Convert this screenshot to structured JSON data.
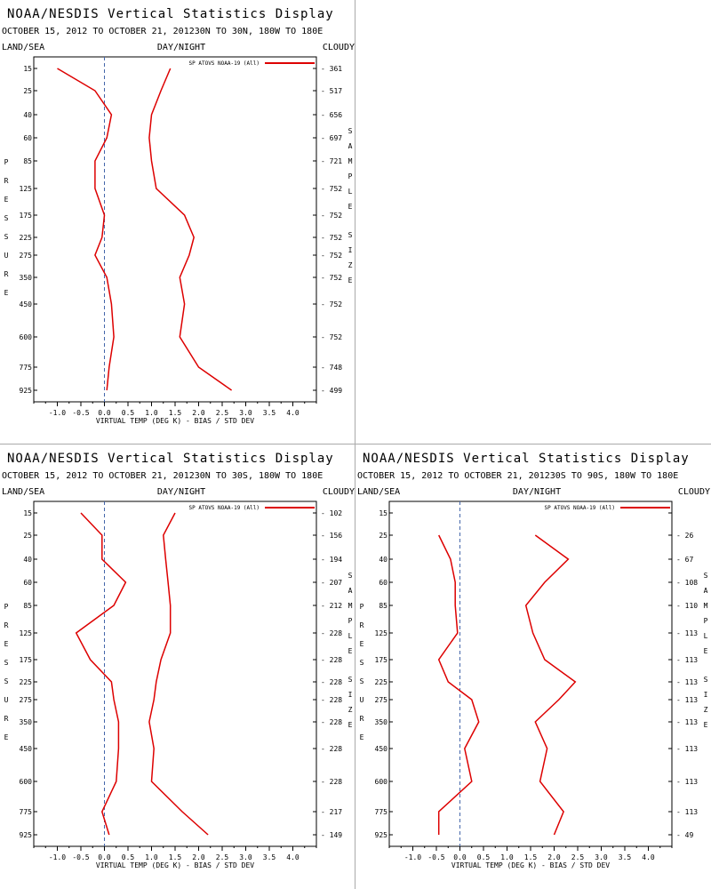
{
  "chart_data": [
    {
      "type": "line",
      "title": "NOAA/NESDIS Vertical Statistics Display",
      "subtitle": "OCTOBER 15, 2012 TO OCTOBER 21, 201230N TO 30N, 180W TO 180E",
      "land_label": "LAND/SEA",
      "daynight_label": "DAY/NIGHT",
      "cloud_label": "CLOUDY",
      "xlabel": "VIRTUAL TEMP (DEG K) - BIAS / STD DEV",
      "ylabel": "PRESSURE",
      "right_label": "SAMPLE SIZE",
      "legend_label": "SP ATOVS NOAA-19 (All)",
      "xlim": [
        -1.5,
        4.5
      ],
      "x_ticks": [
        "-1.0",
        "-0.5",
        "0.0",
        "0.5",
        "1.0",
        "1.5",
        "2.0",
        "2.5",
        "3.0",
        "3.5",
        "4.0"
      ],
      "pressure_levels": [
        "15",
        "25",
        "40",
        "60",
        "85",
        "125",
        "175",
        "225",
        "275",
        "350",
        "450",
        "600",
        "775",
        "925"
      ],
      "sample_size": [
        "361",
        "517",
        "656",
        "697",
        "721",
        "752",
        "752",
        "752",
        "752",
        "752",
        "752",
        "752",
        "748",
        "499"
      ],
      "series": [
        {
          "values": [
            -1.0,
            -0.2,
            0.15,
            0.05,
            -0.2,
            -0.2,
            0.0,
            -0.05,
            -0.2,
            0.05,
            0.15,
            0.2,
            0.1,
            0.05
          ]
        },
        {
          "values": [
            1.4,
            1.2,
            1.0,
            0.95,
            1.0,
            1.1,
            1.7,
            1.9,
            1.8,
            1.6,
            1.7,
            1.6,
            2.0,
            2.7
          ]
        }
      ],
      "line_color": "#dd0000",
      "zero_line_color": "#4466aa"
    },
    {
      "type": "line",
      "title": "NOAA/NESDIS Vertical Statistics Display",
      "subtitle": "OCTOBER 15, 2012 TO OCTOBER 21, 201230N TO 30S, 180W TO 180E",
      "land_label": "LAND/SEA",
      "daynight_label": "DAY/NIGHT",
      "cloud_label": "CLOUDY",
      "xlabel": "VIRTUAL TEMP (DEG K) - BIAS / STD DEV",
      "ylabel": "PRESSURE",
      "right_label": "SAMPLE SIZE",
      "legend_label": "SP ATOVS NOAA-19 (All)",
      "xlim": [
        -1.5,
        4.5
      ],
      "x_ticks": [
        "-1.0",
        "-0.5",
        "0.0",
        "0.5",
        "1.0",
        "1.5",
        "2.0",
        "2.5",
        "3.0",
        "3.5",
        "4.0"
      ],
      "pressure_levels": [
        "15",
        "25",
        "40",
        "60",
        "85",
        "125",
        "175",
        "225",
        "275",
        "350",
        "450",
        "600",
        "775",
        "925"
      ],
      "sample_size": [
        "102",
        "156",
        "194",
        "207",
        "212",
        "228",
        "228",
        "228",
        "228",
        "228",
        "228",
        "228",
        "217",
        "149"
      ],
      "series": [
        {
          "values": [
            -0.5,
            -0.05,
            -0.05,
            0.45,
            0.2,
            -0.6,
            -0.3,
            0.15,
            0.2,
            0.3,
            0.3,
            0.25,
            -0.05,
            0.1
          ]
        },
        {
          "values": [
            1.5,
            1.25,
            1.3,
            1.35,
            1.4,
            1.4,
            1.2,
            1.1,
            1.05,
            0.95,
            1.05,
            1.0,
            1.65,
            2.2
          ]
        }
      ],
      "line_color": "#dd0000",
      "zero_line_color": "#4466aa"
    },
    {
      "type": "line",
      "title": "NOAA/NESDIS Vertical Statistics Display",
      "subtitle": "OCTOBER 15, 2012 TO OCTOBER 21, 201230S TO 90S, 180W TO 180E",
      "land_label": "LAND/SEA",
      "daynight_label": "DAY/NIGHT",
      "cloud_label": "CLOUDY",
      "xlabel": "VIRTUAL TEMP (DEG K) - BIAS / STD DEV",
      "ylabel": "PRESSURE",
      "right_label": "SAMPLE SIZE",
      "legend_label": "SP ATOVS NOAA-19 (All)",
      "xlim": [
        -1.5,
        4.5
      ],
      "x_ticks": [
        "-1.0",
        "-0.5",
        "0.0",
        "0.5",
        "1.0",
        "1.5",
        "2.0",
        "2.5",
        "3.0",
        "3.5",
        "4.0"
      ],
      "pressure_levels": [
        "15",
        "25",
        "40",
        "60",
        "85",
        "125",
        "175",
        "225",
        "275",
        "350",
        "450",
        "600",
        "775",
        "925"
      ],
      "sample_size": [
        "",
        "26",
        "67",
        "108",
        "110",
        "113",
        "113",
        "113",
        "113",
        "113",
        "113",
        "113",
        "113",
        "49"
      ],
      "series": [
        {
          "values": [
            null,
            -0.45,
            -0.2,
            -0.1,
            -0.1,
            -0.05,
            -0.45,
            -0.25,
            0.25,
            0.4,
            0.1,
            0.25,
            -0.45,
            -0.45
          ]
        },
        {
          "values": [
            null,
            1.6,
            2.3,
            1.8,
            1.4,
            1.55,
            1.8,
            2.45,
            2.1,
            1.6,
            1.85,
            1.7,
            2.2,
            2.0
          ]
        }
      ],
      "line_color": "#dd0000",
      "zero_line_color": "#4466aa"
    }
  ]
}
